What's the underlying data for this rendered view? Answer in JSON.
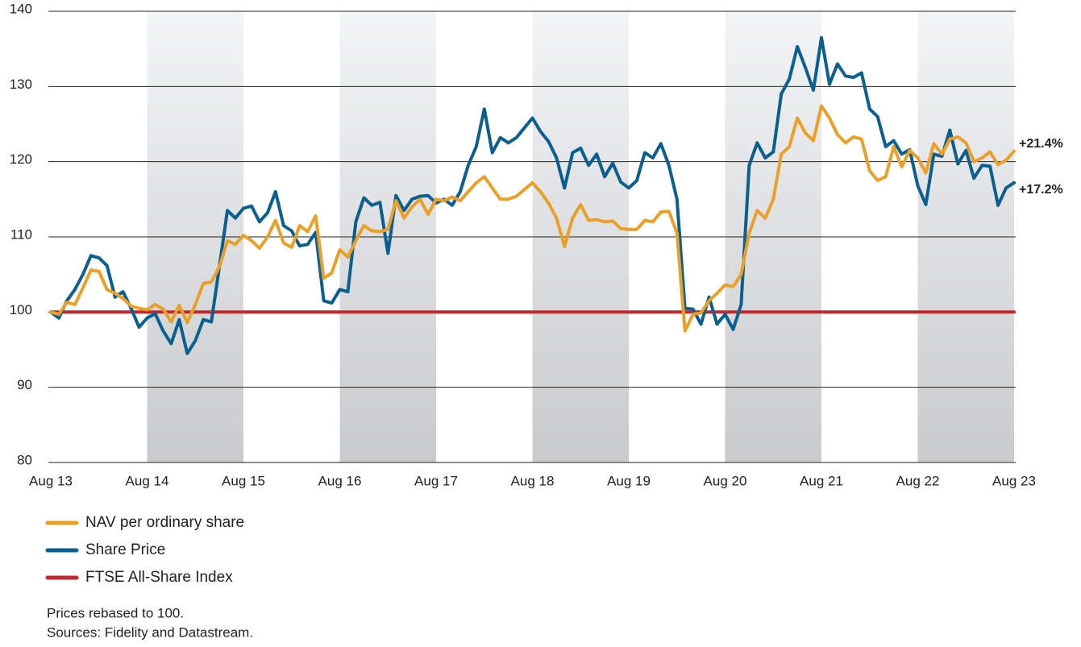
{
  "chart_data": {
    "type": "line",
    "categories": [
      "Aug 13",
      null,
      null,
      null,
      null,
      null,
      null,
      null,
      null,
      null,
      null,
      null,
      "Aug 14",
      null,
      null,
      null,
      null,
      null,
      null,
      null,
      null,
      null,
      null,
      null,
      "Aug 15",
      null,
      null,
      null,
      null,
      null,
      null,
      null,
      null,
      null,
      null,
      null,
      "Aug 16",
      null,
      null,
      null,
      null,
      null,
      null,
      null,
      null,
      null,
      null,
      null,
      "Aug 17",
      null,
      null,
      null,
      null,
      null,
      null,
      null,
      null,
      null,
      null,
      null,
      "Aug 18",
      null,
      null,
      null,
      null,
      null,
      null,
      null,
      null,
      null,
      null,
      null,
      "Aug 19",
      null,
      null,
      null,
      null,
      null,
      null,
      null,
      null,
      null,
      null,
      null,
      "Aug 20",
      null,
      null,
      null,
      null,
      null,
      null,
      null,
      null,
      null,
      null,
      null,
      "Aug 21",
      null,
      null,
      null,
      null,
      null,
      null,
      null,
      null,
      null,
      null,
      null,
      "Aug 22",
      null,
      null,
      null,
      null,
      null,
      null,
      null,
      null,
      null,
      null,
      null,
      "Aug 23"
    ],
    "series": [
      {
        "name": "NAV per ordinary share",
        "color": "#e8a02a",
        "values": [
          100,
          99.7,
          101.3,
          101,
          103.2,
          105.6,
          105.4,
          103,
          102.5,
          101.8,
          100.8,
          100.5,
          100.3,
          101,
          100.4,
          98.7,
          100.9,
          98.6,
          101,
          103.8,
          104,
          106,
          109.5,
          109,
          110.2,
          109.5,
          108.5,
          110,
          112.2,
          109.2,
          108.6,
          111.5,
          110.7,
          112.8,
          104.5,
          105.2,
          108.3,
          107.3,
          109.5,
          111.5,
          110.8,
          110.7,
          111,
          114.8,
          112.5,
          114,
          115,
          113,
          115,
          114.8,
          115.3,
          114.8,
          116,
          117.2,
          118,
          116.5,
          115,
          115,
          115.4,
          116.3,
          117.2,
          116,
          114.5,
          112.5,
          108.7,
          112.5,
          114.3,
          112.2,
          112.3,
          112,
          112.1,
          111.1,
          111,
          111,
          112.2,
          112,
          113.3,
          113.4,
          110.5,
          97.5,
          99.7,
          99.9,
          101.5,
          102.5,
          103.6,
          103.4,
          105,
          110.5,
          113.5,
          112.5,
          115,
          121,
          122,
          125.8,
          123.8,
          122.8,
          127.4,
          125.8,
          123.6,
          122.5,
          123.3,
          123,
          118.8,
          117.5,
          118,
          122,
          119.3,
          121.5,
          120.5,
          118.5,
          122.4,
          121,
          123,
          123.3,
          122.5,
          120,
          120.5,
          121.3,
          119.6,
          120.2,
          121.4
        ]
      },
      {
        "name": "Share Price",
        "color": "#0b5f8e",
        "values": [
          100,
          99.2,
          101.5,
          103,
          105,
          107.5,
          107.2,
          106.2,
          102,
          102.7,
          100.5,
          98,
          99.2,
          99.8,
          97.5,
          95.8,
          99,
          94.5,
          96.2,
          99,
          98.7,
          106,
          113.5,
          112.5,
          113.8,
          114.1,
          112,
          113.2,
          116,
          111.5,
          110.8,
          108.8,
          109,
          110.6,
          101.5,
          101.2,
          103,
          102.7,
          112,
          115.2,
          114.2,
          114.6,
          107.8,
          115.5,
          113.5,
          115,
          115.4,
          115.5,
          114.5,
          115,
          114.2,
          116,
          119.5,
          122,
          127,
          121.2,
          123.2,
          122.5,
          123.2,
          124.5,
          125.8,
          124,
          122.7,
          120.5,
          116.5,
          121.2,
          121.8,
          119.5,
          121,
          118,
          119.8,
          117.3,
          116.5,
          117.5,
          121.2,
          120.5,
          122.4,
          119.5,
          115,
          100.5,
          100.4,
          98.4,
          102,
          98.4,
          99.7,
          97.7,
          101,
          119.5,
          122.5,
          120.5,
          121.3,
          129,
          131,
          135.3,
          132.5,
          129.5,
          136.5,
          130.3,
          133,
          131.4,
          131.2,
          131.8,
          127,
          126,
          122,
          122.8,
          121,
          121.6,
          116.8,
          114.3,
          121,
          120.7,
          124.2,
          119.7,
          121.5,
          117.8,
          119.5,
          119.4,
          114.2,
          116.5,
          117.2
        ]
      },
      {
        "name": "FTSE All-Share Index",
        "color": "#c0282d",
        "values": [
          100,
          100,
          100,
          100,
          100,
          100,
          100,
          100,
          100,
          100,
          100,
          100,
          100,
          100,
          100,
          100,
          100,
          100,
          100,
          100,
          100,
          100,
          100,
          100,
          100,
          100,
          100,
          100,
          100,
          100,
          100,
          100,
          100,
          100,
          100,
          100,
          100,
          100,
          100,
          100,
          100,
          100,
          100,
          100,
          100,
          100,
          100,
          100,
          100,
          100,
          100,
          100,
          100,
          100,
          100,
          100,
          100,
          100,
          100,
          100,
          100,
          100,
          100,
          100,
          100,
          100,
          100,
          100,
          100,
          100,
          100,
          100,
          100,
          100,
          100,
          100,
          100,
          100,
          100,
          100,
          100,
          100,
          100,
          100,
          100,
          100,
          100,
          100,
          100,
          100,
          100,
          100,
          100,
          100,
          100,
          100,
          100,
          100,
          100,
          100,
          100,
          100,
          100,
          100,
          100,
          100,
          100,
          100,
          100,
          100,
          100,
          100,
          100,
          100,
          100,
          100,
          100,
          100,
          100,
          100,
          100
        ]
      }
    ],
    "annotations": [
      "+21.4%",
      "+17.2%"
    ],
    "ylim": [
      80,
      140
    ],
    "yticks": [
      80,
      90,
      100,
      110,
      120,
      130,
      140
    ],
    "grid": true,
    "notes": [
      "Prices rebased to 100.",
      "Sources: Fidelity and Datastream."
    ]
  }
}
